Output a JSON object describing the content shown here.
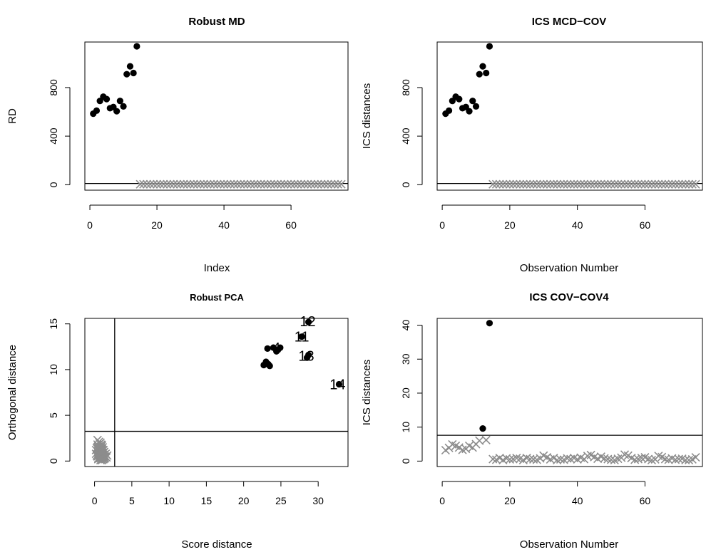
{
  "chart_data": [
    {
      "type": "scatter",
      "title": "Robust MD",
      "xlabel": "Index",
      "ylabel": "RD",
      "xlim": [
        -1.5,
        77
      ],
      "ylim": [
        -45,
        1175
      ],
      "xticks": [
        0,
        20,
        40,
        60
      ],
      "yticks": [
        0,
        400,
        800
      ],
      "cutoff_y": 10,
      "outliers": {
        "x": [
          1,
          2,
          3,
          4,
          5,
          6,
          7,
          8,
          9,
          10,
          11,
          12,
          13,
          14
        ],
        "y": [
          585,
          610,
          690,
          725,
          705,
          630,
          640,
          605,
          690,
          645,
          910,
          975,
          920,
          1140
        ]
      },
      "regular": {
        "x_from": 15,
        "x_to": 75,
        "y": 4
      }
    },
    {
      "type": "scatter",
      "title": "ICS MCD−COV",
      "xlabel": "Observation Number",
      "ylabel": "ICS distances",
      "xlim": [
        -1.5,
        77
      ],
      "ylim": [
        -45,
        1175
      ],
      "xticks": [
        0,
        20,
        40,
        60
      ],
      "yticks": [
        0,
        400,
        800
      ],
      "cutoff_y": 10,
      "outliers": {
        "x": [
          1,
          2,
          3,
          4,
          5,
          6,
          7,
          8,
          9,
          10,
          11,
          12,
          13,
          14
        ],
        "y": [
          585,
          610,
          690,
          725,
          705,
          630,
          640,
          605,
          690,
          645,
          910,
          975,
          920,
          1140
        ]
      },
      "regular": {
        "x_from": 15,
        "x_to": 75,
        "y": 4
      }
    },
    {
      "type": "scatter",
      "title": "Robust PCA",
      "xlabel": "Score distance",
      "ylabel": "Orthogonal distance",
      "xlim": [
        -1.3,
        34
      ],
      "ylim": [
        -0.6,
        15.6
      ],
      "xticks": [
        0,
        5,
        10,
        15,
        20,
        25,
        30
      ],
      "yticks": [
        0,
        5,
        10,
        15
      ],
      "cutoff_x": 2.7,
      "cutoff_y": 3.25,
      "outliers": {
        "x": [
          22.7,
          23.0,
          23.2,
          23.5,
          23.3,
          24.0,
          24.4,
          24.9,
          24.6,
          27.8,
          28.7,
          28.5,
          32.8,
          28.7
        ],
        "y": [
          10.5,
          10.85,
          12.3,
          10.4,
          10.6,
          12.4,
          12.0,
          12.4,
          12.15,
          13.6,
          15.2,
          11.3,
          8.4,
          11.6
        ]
      },
      "point_labels": [
        {
          "text": "4",
          "x": 24.4,
          "y": 12.4
        },
        {
          "text": "11",
          "x": 27.8,
          "y": 13.6
        },
        {
          "text": "12",
          "x": 28.6,
          "y": 15.3
        },
        {
          "text": "13",
          "x": 28.4,
          "y": 11.5
        },
        {
          "text": "14",
          "x": 32.6,
          "y": 8.4
        }
      ],
      "regular": {
        "x": [
          0.2,
          0.4,
          0.5,
          0.6,
          0.7,
          0.8,
          0.9,
          1.0,
          1.1,
          1.2,
          1.3,
          0.3,
          0.5,
          0.7,
          0.9,
          1.1,
          1.4,
          0.6,
          0.8,
          1.0,
          1.2,
          0.4,
          0.7,
          1.0,
          0.2,
          0.5,
          0.8,
          1.1,
          1.5,
          0.6,
          0.9,
          1.3,
          0.4,
          0.7,
          1.0,
          1.2,
          0.5,
          0.8,
          1.1,
          0.3,
          0.6,
          0.9,
          1.4,
          0.7,
          1.0,
          0.5,
          0.8,
          1.2,
          0.6,
          0.9,
          1.1,
          0.4,
          0.7,
          1.6,
          1.0,
          0.8,
          1.3,
          0.5,
          0.9,
          1.2,
          1.7
        ],
        "y": [
          0.8,
          2.3,
          1.5,
          1.1,
          0.6,
          2.0,
          1.8,
          0.4,
          1.2,
          0.9,
          0.3,
          1.4,
          0.2,
          1.9,
          1.0,
          0.7,
          0.5,
          1.6,
          0.9,
          1.3,
          0.2,
          0.5,
          1.1,
          1.7,
          1.2,
          0.9,
          0.3,
          1.5,
          0.8,
          0.6,
          1.2,
          1.0,
          1.8,
          0.4,
          0.1,
          0.6,
          1.3,
          1.4,
          0.2,
          0.6,
          0.8,
          1.6,
          0.3,
          0.7,
          1.1,
          1.0,
          0.1,
          1.2,
          2.1,
          0.5,
          0.9,
          1.5,
          1.3,
          0.4,
          0.8,
          1.0,
          0.7,
          0.3,
          1.4,
          0.5,
          0.6
        ]
      }
    },
    {
      "type": "scatter",
      "title": "ICS COV−COV4",
      "xlabel": "Observation Number",
      "ylabel": "ICS distances",
      "xlim": [
        -1.5,
        77
      ],
      "ylim": [
        -1.6,
        42
      ],
      "xticks": [
        0,
        20,
        40,
        60
      ],
      "yticks": [
        0,
        10,
        20,
        30,
        40
      ],
      "cutoff_y": 7.6,
      "outliers": {
        "x": [
          12,
          14
        ],
        "y": [
          9.6,
          40.6
        ]
      },
      "regular": {
        "x": [
          1,
          2,
          3,
          4,
          5,
          6,
          7,
          8,
          9,
          10,
          11,
          13,
          15,
          16,
          17,
          18,
          19,
          20,
          21,
          22,
          23,
          24,
          25,
          26,
          27,
          28,
          29,
          30,
          31,
          32,
          33,
          34,
          35,
          36,
          37,
          38,
          39,
          40,
          41,
          42,
          43,
          44,
          45,
          46,
          47,
          48,
          49,
          50,
          51,
          52,
          53,
          54,
          55,
          56,
          57,
          58,
          59,
          60,
          61,
          62,
          63,
          64,
          65,
          66,
          67,
          68,
          69,
          70,
          71,
          72,
          73,
          74,
          75
        ],
        "y": [
          3.2,
          3.9,
          4.9,
          4.5,
          4.0,
          3.3,
          3.6,
          4.5,
          4.0,
          5.0,
          6.0,
          6.2,
          0.6,
          0.4,
          0.9,
          0.3,
          0.8,
          0.5,
          0.6,
          0.9,
          0.7,
          0.3,
          0.9,
          0.6,
          0.5,
          0.4,
          0.8,
          1.6,
          1.1,
          0.5,
          0.9,
          0.3,
          0.5,
          0.4,
          0.8,
          0.6,
          0.9,
          0.5,
          1.0,
          0.6,
          1.5,
          1.8,
          1.2,
          0.7,
          1.3,
          0.8,
          0.6,
          0.4,
          0.3,
          0.7,
          1.0,
          1.9,
          1.6,
          0.9,
          0.4,
          0.6,
          0.9,
          1.1,
          0.6,
          0.3,
          0.5,
          1.5,
          1.2,
          0.6,
          0.4,
          0.8,
          0.4,
          0.6,
          0.7,
          0.3,
          0.3,
          0.5,
          1.1
        ]
      }
    }
  ]
}
